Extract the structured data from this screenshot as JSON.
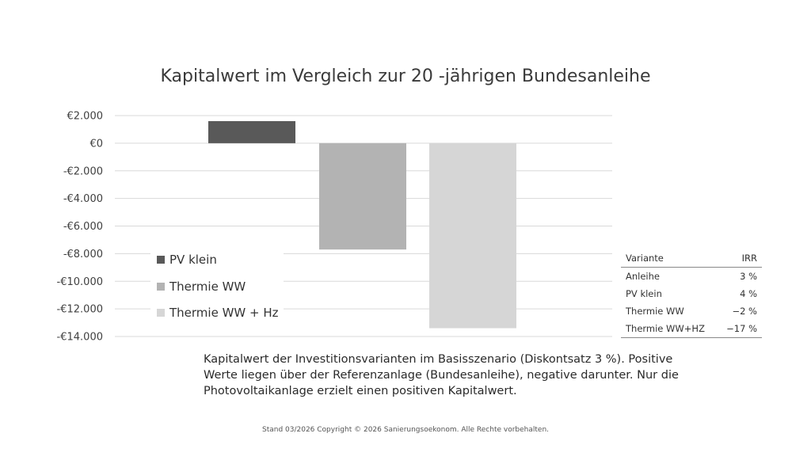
{
  "chart_data": {
    "type": "bar",
    "title": "Kapitalwert im Vergleich zur 20 -jährigen Bundesanleihe",
    "categories": [
      "PV klein",
      "Thermie WW",
      "Thermie WW + Hz"
    ],
    "values": [
      1600,
      -7700,
      -13400
    ],
    "ylim": [
      -14000,
      2000
    ],
    "yticks": [
      2000,
      0,
      -2000,
      -4000,
      -6000,
      -8000,
      -10000,
      -12000,
      -14000
    ],
    "ytick_labels": [
      "€2.000",
      "€0",
      "-€2.000",
      "-€4.000",
      "-€6.000",
      "-€8.000",
      "-€10.000",
      "-€12.000",
      "-€14.000"
    ],
    "colors": [
      "#595959",
      "#b3b3b3",
      "#d6d6d6"
    ],
    "grid": true,
    "legend_position": "bottom-left",
    "legend": [
      "PV klein",
      "Thermie WW",
      "Thermie WW + Hz"
    ]
  },
  "irr_table": {
    "headers": [
      "Variante",
      "IRR"
    ],
    "rows": [
      [
        "Anleihe",
        "3 %"
      ],
      [
        "PV klein",
        "4 %"
      ],
      [
        "Thermie WW",
        "−2 %"
      ],
      [
        "Thermie WW+HZ",
        "−17 %"
      ]
    ]
  },
  "caption": "Kapitalwert der Investitionsvarianten im Basisszenario (Diskontsatz 3 %). Positive Werte liegen über der Referenzanlage (Bundesanleihe), negative darunter. Nur die Photovoltaikanlage erzielt einen positiven Kapitalwert.",
  "footer": "Stand 03/2026 Copyright © 2026 Sanierungsoekonom. Alle Rechte vorbehalten."
}
